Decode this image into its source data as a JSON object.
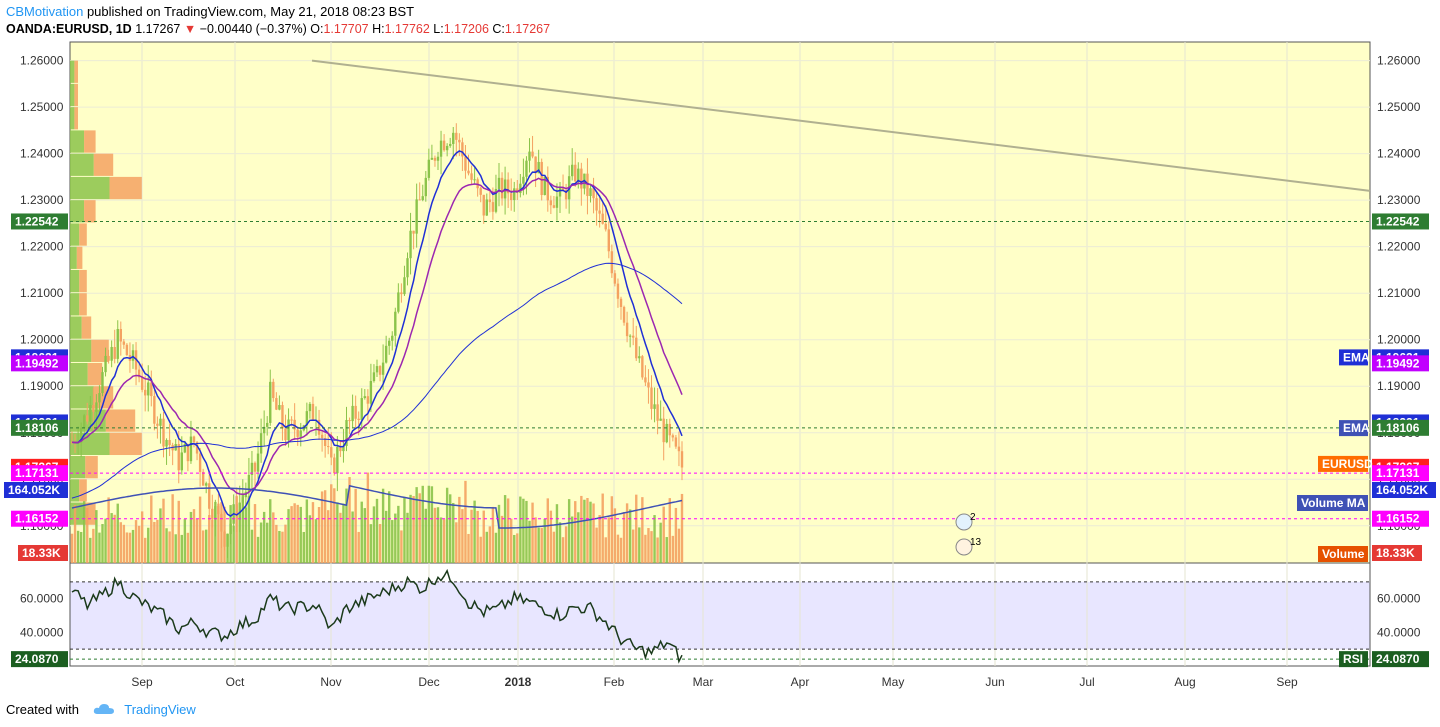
{
  "header": {
    "publisher": "CBMotivation",
    "published_text": "published on TradingView.com, May 21, 2018 08:23 BST",
    "symbol": "OANDA:EURUSD, 1D",
    "last": "1.17267",
    "change": "−0.00440 (−0.37%)",
    "o_label": "O:",
    "o_val": "1.17707",
    "h_label": "H:",
    "h_val": "1.17762",
    "l_label": "L:",
    "l_val": "1.17206",
    "c_label": "C:",
    "c_val": "1.17267"
  },
  "footer": {
    "created_with": "Created with",
    "brand": "TradingView"
  },
  "colors": {
    "up": "#8bc34a",
    "down": "#f4a261",
    "bg_price": "#ffffc8",
    "bg_rsi": "#e8e6ff",
    "ema_fast": "#1f2fd6",
    "ema_slow": "#9c27b0",
    "rsi_line": "#1b3a1b"
  },
  "chart_data": [
    {
      "type": "candlestick",
      "symbol": "OANDA:EURUSD",
      "interval": "1D",
      "ylim": [
        1.152,
        1.264
      ],
      "yticks": [
        "1.26000",
        "1.25000",
        "1.24000",
        "1.23000",
        "1.22000",
        "1.21000",
        "1.20000",
        "1.19000",
        "1.18000",
        "1.17000",
        "1.16000"
      ],
      "xticks": [
        "Sep",
        "Oct",
        "Nov",
        "Dec",
        "2018",
        "Feb",
        "Mar",
        "Apr",
        "May",
        "Jun",
        "Jul",
        "Aug",
        "Sep"
      ],
      "approx_closes_weekly": [
        1.178,
        1.184,
        1.192,
        1.2,
        1.195,
        1.188,
        1.18,
        1.174,
        1.178,
        1.166,
        1.158,
        1.165,
        1.172,
        1.188,
        1.18,
        1.182,
        1.185,
        1.172,
        1.181,
        1.186,
        1.192,
        1.202,
        1.22,
        1.232,
        1.242,
        1.245,
        1.236,
        1.228,
        1.232,
        1.232,
        1.242,
        1.232,
        1.23,
        1.236,
        1.231,
        1.222,
        1.208,
        1.196,
        1.186,
        1.179,
        1.1727
      ],
      "trendline": {
        "from": [
          "Oct",
          1.26
        ],
        "to": [
          "Sep",
          1.232
        ]
      },
      "price_labels": [
        {
          "value": "1.22542",
          "kind": "horizontal-line",
          "color": "#2e7d32"
        },
        {
          "value": "1.19621",
          "series": "EMA fast",
          "color": "#1f2fd6"
        },
        {
          "value": "1.19492",
          "series": "EMA slow",
          "color": "#c100ff"
        },
        {
          "value": "1.18221",
          "series": "EMA 200",
          "color": "#1f2fd6"
        },
        {
          "value": "1.18106",
          "kind": "horizontal-line",
          "color": "#2e7d32"
        },
        {
          "value": "1.17267",
          "series": "EURUSD",
          "color": "#ff1f1f"
        },
        {
          "value": "1.17131",
          "kind": "horizontal-line",
          "color": "#ff00ff"
        },
        {
          "value": "1.16152",
          "kind": "horizontal-line",
          "color": "#ff00ff"
        }
      ],
      "legend_tags": [
        {
          "label": "EMA",
          "color": "#1f2fd6"
        },
        {
          "label": "EMA",
          "color": "#3f51b5"
        },
        {
          "label": "EURUSD",
          "color": "#ff6d00"
        },
        {
          "label": "Volume MA",
          "color": "#3f51b5"
        },
        {
          "label": "Volume",
          "color": "#e65100"
        }
      ],
      "volume_labels": [
        {
          "value": "164.052K",
          "color": "#1f2fd6"
        },
        {
          "value": "18.33K",
          "color": "#e53935"
        }
      ],
      "event_badges": [
        "2",
        "13"
      ]
    },
    {
      "type": "line",
      "name": "RSI",
      "ylim": [
        20,
        80
      ],
      "yticks": [
        "60.0000",
        "40.0000"
      ],
      "last_value": "24.0870",
      "approx_values_weekly": [
        65,
        56,
        62,
        70,
        61,
        55,
        50,
        42,
        46,
        40,
        38,
        44,
        48,
        60,
        54,
        55,
        56,
        42,
        54,
        58,
        62,
        66,
        70,
        66,
        74,
        72,
        58,
        52,
        54,
        60,
        58,
        54,
        50,
        55,
        54,
        46,
        36,
        30,
        28,
        34,
        24
      ],
      "levels": [
        70,
        30
      ]
    }
  ]
}
